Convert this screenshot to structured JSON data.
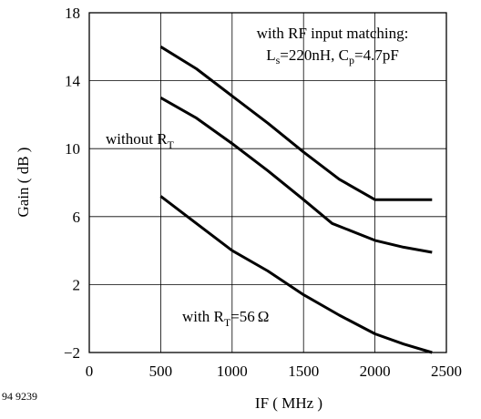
{
  "figure_id": "94 9239",
  "chart_data": {
    "type": "line",
    "xlabel": "IF ( MHz )",
    "ylabel": "Gain ( dB )",
    "xlim": [
      0,
      2500
    ],
    "ylim": [
      -2,
      18
    ],
    "x_ticks": [
      0,
      500,
      1000,
      1500,
      2000,
      2500
    ],
    "y_ticks": [
      -2,
      2,
      6,
      10,
      14,
      18
    ],
    "y_tick_labels": [
      "−2",
      "2",
      "6",
      "10",
      "14",
      "18"
    ],
    "grid": true,
    "series": [
      {
        "x": [
          500,
          750,
          1000,
          1250,
          1500,
          1750,
          2000,
          2200,
          2400
        ],
        "y": [
          16.0,
          14.7,
          13.1,
          11.5,
          9.8,
          8.2,
          7.0,
          7.0,
          7.0
        ]
      },
      {
        "x": [
          500,
          750,
          1000,
          1250,
          1500,
          1700,
          2000,
          2200,
          2400
        ],
        "y": [
          13.0,
          11.8,
          10.3,
          8.7,
          7.0,
          5.6,
          4.6,
          4.2,
          3.9
        ]
      },
      {
        "x": [
          500,
          750,
          1000,
          1250,
          1500,
          1750,
          2000,
          2200,
          2400
        ],
        "y": [
          7.2,
          5.6,
          4.0,
          2.8,
          1.4,
          0.2,
          -0.9,
          -1.5,
          -2.0
        ]
      }
    ],
    "annotations": {
      "top_note_line1": "with RF input matching:",
      "top_note_line2": {
        "l_base": "L",
        "l_sub": "s",
        "l_value": "=220nH, ",
        "c_base": "C",
        "c_sub": "p",
        "c_value": "=4.7pF"
      },
      "middle_label": {
        "base": "without R",
        "sub": "T"
      },
      "bottom_label": {
        "base": "with R",
        "sub": "T",
        "value": "=56",
        "unit": "Ω"
      }
    }
  }
}
